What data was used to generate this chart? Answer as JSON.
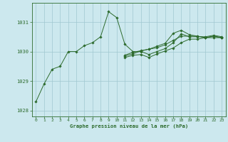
{
  "title": "Graphe pression niveau de la mer (hPa)",
  "bg_color": "#cce8ee",
  "grid_color": "#a0c8d0",
  "line_color": "#2d6b2d",
  "marker_color": "#2d6b2d",
  "xlim": [
    -0.5,
    23.5
  ],
  "ylim": [
    1027.8,
    1031.65
  ],
  "yticks": [
    1028,
    1029,
    1030,
    1031
  ],
  "xticks": [
    0,
    1,
    2,
    3,
    4,
    5,
    6,
    7,
    8,
    9,
    10,
    11,
    12,
    13,
    14,
    15,
    16,
    17,
    18,
    19,
    20,
    21,
    22,
    23
  ],
  "series": [
    [
      1028.3,
      1028.9,
      1029.4,
      1029.5,
      1030.0,
      1030.0,
      1030.2,
      1030.3,
      1030.5,
      1031.35,
      1031.15,
      1030.25,
      1030.0,
      1030.0,
      1029.9,
      1030.0,
      1030.1,
      1030.3,
      1030.6,
      1030.5,
      1030.5,
      1030.5,
      1030.55,
      1030.5
    ],
    [
      null,
      null,
      null,
      null,
      null,
      null,
      null,
      null,
      null,
      null,
      null,
      1029.8,
      1029.87,
      1029.9,
      1029.8,
      1029.92,
      1030.02,
      1030.12,
      1030.3,
      1030.42,
      1030.42,
      1030.47,
      1030.47,
      1030.47
    ],
    [
      null,
      null,
      null,
      null,
      null,
      null,
      null,
      null,
      null,
      null,
      null,
      1029.85,
      1029.92,
      1030.02,
      1030.08,
      1030.18,
      1030.28,
      1030.62,
      1030.72,
      1030.57,
      1030.52,
      1030.47,
      1030.52,
      1030.47
    ],
    [
      null,
      null,
      null,
      null,
      null,
      null,
      null,
      null,
      null,
      null,
      null,
      1029.88,
      1029.97,
      1030.03,
      1030.08,
      1030.13,
      1030.23,
      1030.38,
      1030.52,
      1030.52,
      1030.52,
      1030.47,
      1030.52,
      1030.47
    ]
  ]
}
